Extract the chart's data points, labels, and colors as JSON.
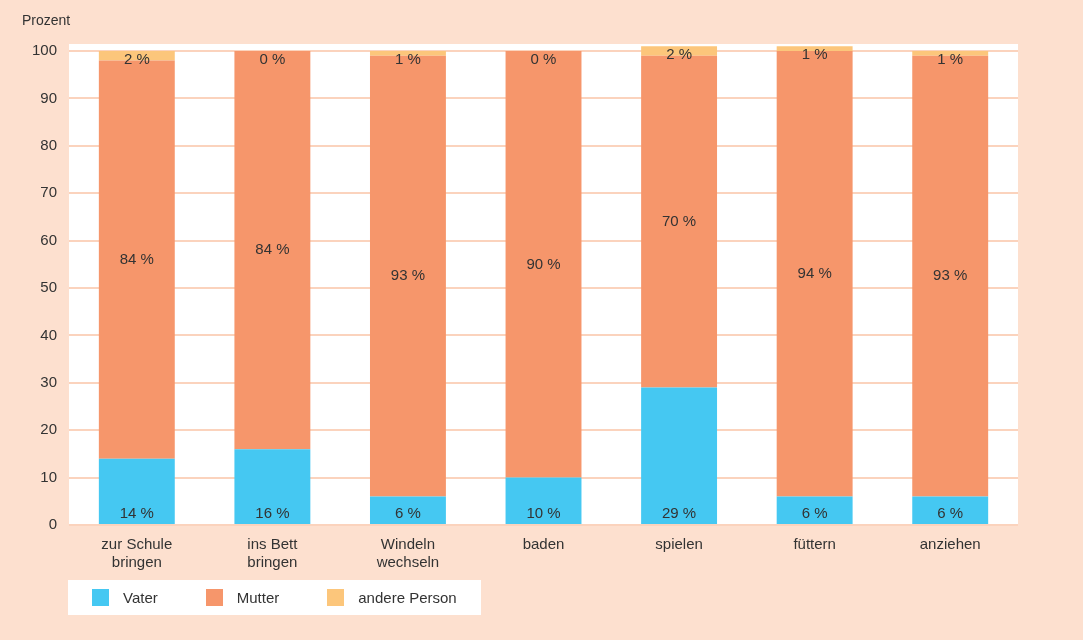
{
  "chart_data": {
    "type": "bar",
    "stacked": true,
    "ylabel": "Prozent",
    "categories": [
      "zur Schule bringen",
      "ins Bett bringen",
      "Windeln wechseln",
      "baden",
      "spielen",
      "füttern",
      "anziehen"
    ],
    "series": [
      {
        "name": "Vater",
        "color": "#45c8f2",
        "values": [
          14,
          16,
          6,
          10,
          29,
          6,
          6
        ],
        "value_labels": [
          "14 %",
          "16 %",
          "6 %",
          "10 %",
          "29 %",
          "6 %",
          "6 %"
        ]
      },
      {
        "name": "Mutter",
        "color": "#f6966b",
        "values": [
          84,
          84,
          93,
          90,
          70,
          94,
          93
        ],
        "value_labels": [
          "84 %",
          "84 %",
          "93 %",
          "90 %",
          "70 %",
          "94 %",
          "93 %"
        ]
      },
      {
        "name": "andere Person",
        "color": "#fcc67b",
        "values": [
          2,
          0,
          1,
          0,
          2,
          1,
          1
        ],
        "value_labels": [
          "2 %",
          "0 %",
          "1 %",
          "0 %",
          "2 %",
          "1 %",
          "1 %"
        ]
      }
    ],
    "ylim": [
      0,
      101.5
    ],
    "yticks": [
      0,
      10,
      20,
      30,
      40,
      50,
      60,
      70,
      80,
      90,
      100
    ],
    "grid": "y",
    "legend": "bottom left"
  }
}
